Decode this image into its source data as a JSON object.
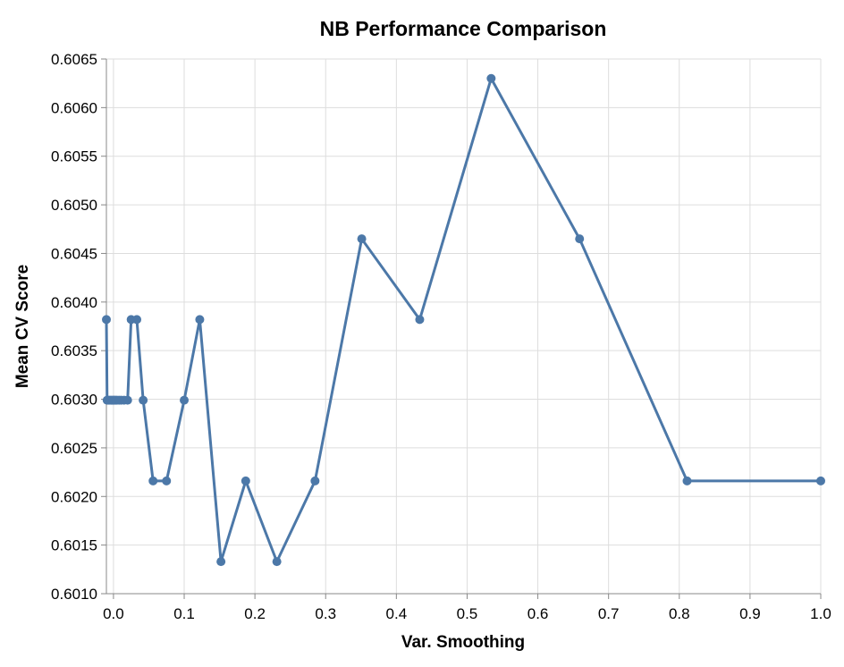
{
  "chart_data": {
    "type": "line",
    "title": "NB Performance Comparison",
    "xlabel": "Var. Smoothing",
    "ylabel": "Mean CV Score",
    "xlim": [
      -0.01,
      1.0
    ],
    "ylim": [
      0.601,
      0.6065
    ],
    "xticks": [
      0.0,
      0.1,
      0.2,
      0.3,
      0.4,
      0.5,
      0.6,
      0.7,
      0.8,
      0.9,
      1.0
    ],
    "xtick_labels": [
      "0.0",
      "0.1",
      "0.2",
      "0.3",
      "0.4",
      "0.5",
      "0.6",
      "0.7",
      "0.8",
      "0.9",
      "1.0"
    ],
    "yticks": [
      0.601,
      0.6015,
      0.602,
      0.6025,
      0.603,
      0.6035,
      0.604,
      0.6045,
      0.605,
      0.6055,
      0.606,
      0.6065
    ],
    "ytick_labels": [
      "0.6010",
      "0.6015",
      "0.6020",
      "0.6025",
      "0.6030",
      "0.6035",
      "0.6040",
      "0.6045",
      "0.6050",
      "0.6055",
      "0.6060",
      "0.6065"
    ],
    "grid": true,
    "color": "#4c78a8",
    "series": [
      {
        "x": [
          -0.01,
          -0.009,
          -0.007,
          -0.005,
          -0.003,
          -0.001,
          0.001,
          0.003,
          0.005,
          0.008,
          0.011,
          0.015,
          0.02,
          0.025,
          0.033,
          0.042,
          0.056,
          0.075,
          0.1,
          0.122,
          0.152,
          0.187,
          0.231,
          0.285,
          0.351,
          0.433,
          0.534,
          0.659,
          0.811,
          1.0
        ],
        "y": [
          0.60382,
          0.60299,
          0.60299,
          0.60299,
          0.60299,
          0.60299,
          0.60299,
          0.60299,
          0.60299,
          0.60299,
          0.60299,
          0.60299,
          0.60299,
          0.60382,
          0.60382,
          0.60299,
          0.60216,
          0.60216,
          0.60299,
          0.60382,
          0.60133,
          0.60216,
          0.60133,
          0.60216,
          0.60465,
          0.60382,
          0.6063,
          0.60465,
          0.60216,
          0.60216
        ]
      }
    ]
  }
}
